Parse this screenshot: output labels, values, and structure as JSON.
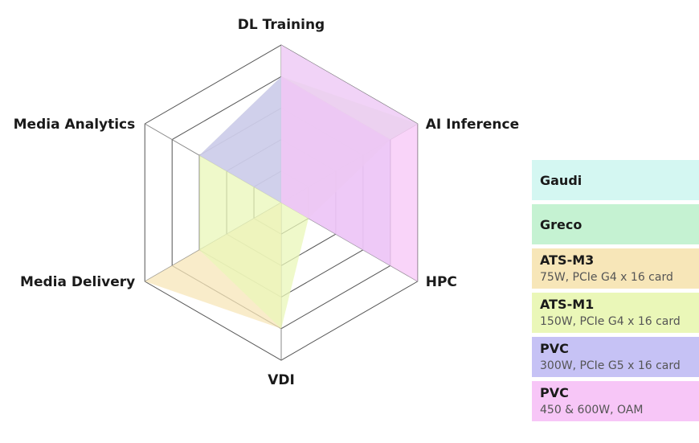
{
  "chart_data": {
    "type": "radar",
    "axes": [
      "DL Training",
      "AI Inference",
      "HPC",
      "VDI",
      "Media Delivery",
      "Media Analytics"
    ],
    "rlim": [
      0,
      5
    ],
    "grid_levels": 5,
    "grid": true,
    "legend_position": "right",
    "series": [
      {
        "name": "Gaudi",
        "subtitle": "",
        "color": "#d4f7f2",
        "values": [
          5,
          5,
          0,
          0,
          0,
          0
        ]
      },
      {
        "name": "Greco",
        "subtitle": "",
        "color": "#c5f2d2",
        "values": [
          4,
          5,
          0,
          0,
          0,
          0
        ]
      },
      {
        "name": "ATS-M3",
        "subtitle": "75W, PCIe G4 x 16 card",
        "color": "#f7e6b8",
        "values": [
          0,
          0,
          0,
          4,
          5,
          0
        ]
      },
      {
        "name": "ATS-M1",
        "subtitle": "150W, PCIe G4 x 16 card",
        "color": "#eaf7b8",
        "values": [
          4,
          4,
          1,
          4,
          3,
          3
        ]
      },
      {
        "name": "PVC",
        "subtitle": "300W, PCIe G5 x 16 card",
        "color": "#c6c2f5",
        "values": [
          4,
          4,
          4,
          0,
          0,
          3
        ]
      },
      {
        "name": "PVC",
        "subtitle": "450 & 600W, OAM",
        "color": "#f7c6f7",
        "values": [
          5,
          5,
          5,
          0,
          0,
          0
        ]
      }
    ]
  }
}
